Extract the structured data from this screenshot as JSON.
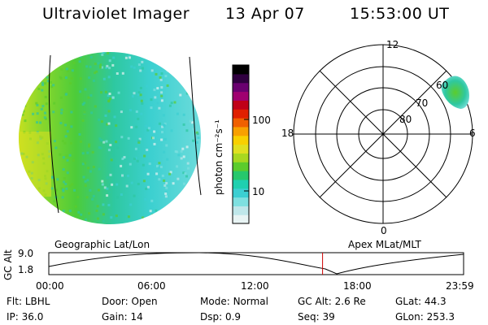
{
  "header": {
    "instrument": "Ultraviolet Imager",
    "date": "13 Apr 07",
    "time": "15:53:00 UT"
  },
  "colorbar": {
    "unit_label": "photon cm⁻²s⁻¹",
    "ticks": [
      "100",
      "10"
    ],
    "colors": [
      "#e8f4f4",
      "#bfe7ea",
      "#7ee0e0",
      "#3ccfd2",
      "#1fd0b0",
      "#27c86c",
      "#5ccc2c",
      "#a8d820",
      "#e0e020",
      "#f8d000",
      "#f8a000",
      "#f06000",
      "#e02000",
      "#c00018",
      "#a00070",
      "#6a0070",
      "#300040",
      "#000000"
    ]
  },
  "polar": {
    "mlt_labels": {
      "top": "12",
      "left": "18",
      "right": "6",
      "bottom": "0"
    },
    "lat_labels": [
      "80",
      "70",
      "60"
    ]
  },
  "altitude_plot": {
    "ylabel": "GC Alt",
    "ytick_top": "9.0",
    "ytick_bottom": "1.8",
    "left_caption": "Geographic Lat/Lon",
    "right_caption": "Apex MLat/MLT",
    "xticks": [
      "00:00",
      "06:00",
      "12:00",
      "18:00",
      "23:59"
    ],
    "current_time_fraction": 0.66
  },
  "status": {
    "row1": [
      {
        "key": "Flt:",
        "value": "LBHL"
      },
      {
        "key": "Door:",
        "value": "Open"
      },
      {
        "key": "Mode:",
        "value": "Normal"
      },
      {
        "key": "GC Alt:",
        "value": "2.6 Re"
      },
      {
        "key": "GLat:",
        "value": "44.3"
      }
    ],
    "row2": [
      {
        "key": "IP:",
        "value": "36.0"
      },
      {
        "key": "Gain:",
        "value": "14"
      },
      {
        "key": "Dsp:",
        "value": "0.9"
      },
      {
        "key": "Seq:",
        "value": "39"
      },
      {
        "key": "GLon:",
        "value": "253.3"
      }
    ]
  }
}
